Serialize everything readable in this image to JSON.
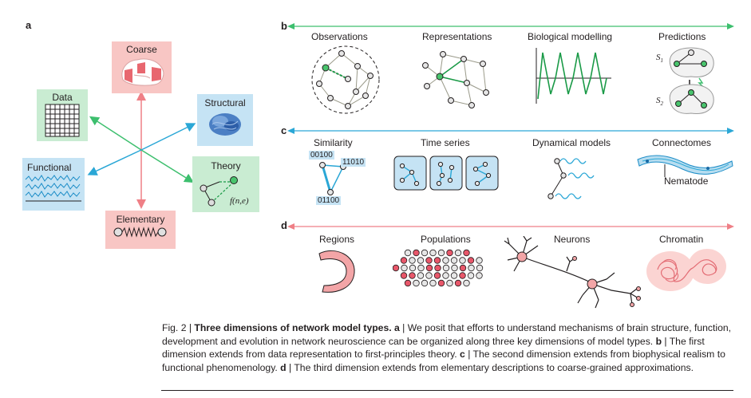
{
  "panel_a": {
    "letter": "a",
    "coarse": "Coarse",
    "structural": "Structural",
    "data": "Data",
    "theory": "Theory",
    "theory_formula": "f(n,e)",
    "functional": "Functional",
    "elementary": "Elementary"
  },
  "panel_b": {
    "letter": "b",
    "items": [
      "Observations",
      "Representations",
      "Biological modelling",
      "Predictions"
    ],
    "s1": "S",
    "s1_sub": "1",
    "s2": "S",
    "s2_sub": "2"
  },
  "panel_c": {
    "letter": "c",
    "items": [
      "Similarity",
      "Time series",
      "Dynamical models",
      "Connectomes"
    ],
    "codes": [
      "00100",
      "11010",
      "01100"
    ],
    "nematode": "Nematode"
  },
  "panel_d": {
    "letter": "d",
    "items": [
      "Regions",
      "Populations",
      "Neurons",
      "Chromatin"
    ]
  },
  "caption": {
    "fig": "Fig. 2 | ",
    "title": "Three dimensions of network model types.",
    "a_label": " a",
    "a_text": " | We posit that efforts to understand mechanisms of brain structure, function, development and evolution in network neuroscience can be organized along three key dimensions of model types. ",
    "b_label": "b",
    "b_text": " | The first dimension extends from data representation to first-principles theory. ",
    "c_label": "c",
    "c_text": " | The second dimension extends from biophysical realism to functional phenomenology. ",
    "d_label": "d",
    "d_text": " | The third dimension extends from elementary descriptions to coarse-grained approximations."
  },
  "colors": {
    "green": "#3dbf6e",
    "blue": "#2aa7d6",
    "red": "#ef7f86",
    "green_box": "#c9ecd2",
    "blue_box": "#c5e3f4",
    "red_box": "#f8c6c4"
  }
}
